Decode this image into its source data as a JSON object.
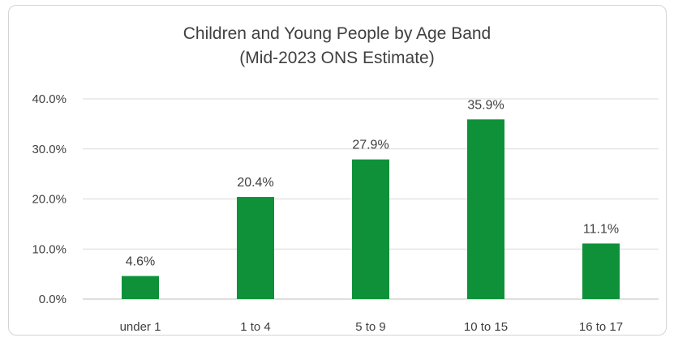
{
  "chart_data": {
    "type": "bar",
    "title": "Children and Young People by Age Band",
    "subtitle": "(Mid-2023 ONS Estimate)",
    "categories": [
      "under 1",
      "1 to 4",
      "5 to 9",
      "10 to 15",
      "16 to 17"
    ],
    "values": [
      4.6,
      20.4,
      27.9,
      35.9,
      11.1
    ],
    "data_labels": [
      "4.6%",
      "20.4%",
      "27.9%",
      "35.9%",
      "11.1%"
    ],
    "y_ticks": [
      "0.0%",
      "10.0%",
      "20.0%",
      "30.0%",
      "40.0%"
    ],
    "ylim": [
      0,
      40
    ],
    "xlabel": "",
    "ylabel": "",
    "grid": true,
    "legend": "none",
    "bar_color": "#0e9139",
    "grid_color": "#d9d9d9"
  }
}
